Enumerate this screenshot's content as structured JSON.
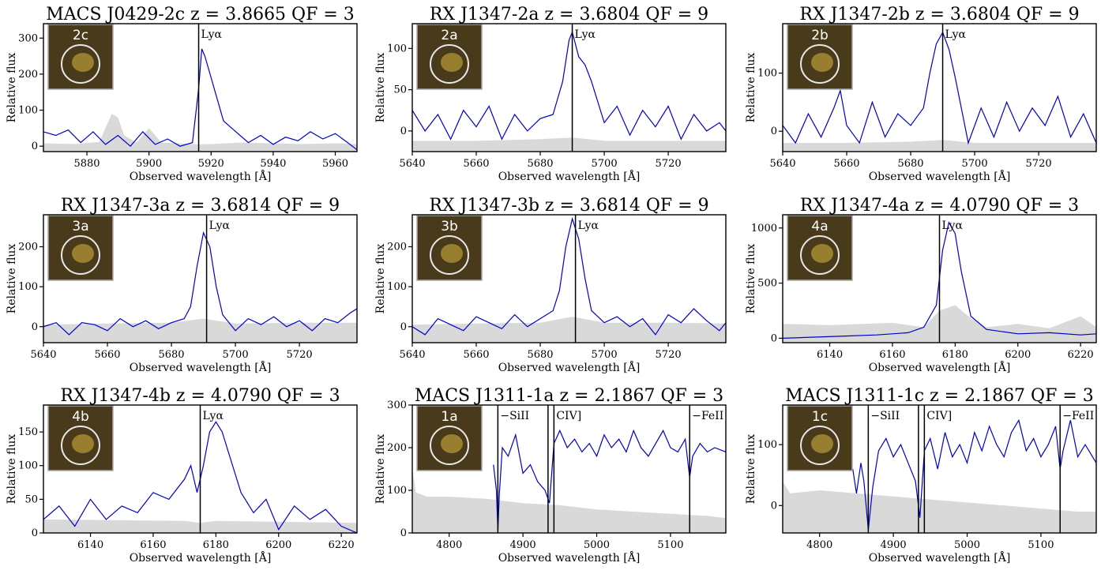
{
  "chart_data": [
    {
      "type": "line",
      "title": "MACS J0429-2c  z = 3.8665 QF = 3",
      "xlabel": "Observed wavelength  [Å]",
      "ylabel": "Relative flux",
      "xlim": [
        5866,
        5967
      ],
      "ylim": [
        -15,
        340
      ],
      "xticks": [
        5880,
        5900,
        5920,
        5940,
        5960
      ],
      "yticks": [
        0,
        100,
        200,
        300
      ],
      "stamp_label": "2c",
      "lines": [
        {
          "x": 5916,
          "label": "Lyα"
        }
      ],
      "series": [
        {
          "style": "flux",
          "x": [
            5866,
            5870,
            5874,
            5878,
            5882,
            5886,
            5890,
            5894,
            5898,
            5902,
            5906,
            5910,
            5914,
            5916,
            5917,
            5918,
            5920,
            5922,
            5924,
            5928,
            5932,
            5936,
            5940,
            5944,
            5948,
            5952,
            5956,
            5960,
            5964,
            5967
          ],
          "y": [
            40,
            30,
            45,
            10,
            40,
            5,
            30,
            0,
            40,
            5,
            20,
            0,
            10,
            160,
            270,
            250,
            190,
            130,
            70,
            40,
            10,
            30,
            5,
            25,
            15,
            40,
            20,
            35,
            10,
            -10
          ]
        },
        {
          "style": "error",
          "x": [
            5866,
            5876,
            5884,
            5888,
            5890,
            5892,
            5896,
            5900,
            5904,
            5910,
            5916,
            5920,
            5930,
            5940,
            5950,
            5960,
            5967
          ],
          "y": [
            8,
            6,
            12,
            90,
            80,
            30,
            10,
            50,
            10,
            8,
            5,
            6,
            10,
            8,
            6,
            8,
            6
          ]
        }
      ]
    },
    {
      "type": "line",
      "title": "RX J1347-2a  z = 3.6804    QF = 9",
      "xlabel": "Observed wavelength  [Å]",
      "ylabel": "Relative flux",
      "xlim": [
        5640,
        5738
      ],
      "ylim": [
        -25,
        130
      ],
      "xticks": [
        5640,
        5660,
        5680,
        5700,
        5720
      ],
      "yticks": [
        0,
        50,
        100
      ],
      "stamp_label": "2a",
      "lines": [
        {
          "x": 5690,
          "label": "Lyα"
        }
      ],
      "series": [
        {
          "style": "flux",
          "x": [
            5640,
            5644,
            5648,
            5652,
            5656,
            5660,
            5664,
            5668,
            5672,
            5676,
            5680,
            5684,
            5687,
            5689,
            5690,
            5692,
            5694,
            5696,
            5700,
            5704,
            5708,
            5712,
            5716,
            5720,
            5724,
            5728,
            5732,
            5736,
            5738
          ],
          "y": [
            25,
            0,
            20,
            -10,
            25,
            5,
            30,
            -10,
            20,
            0,
            15,
            20,
            60,
            110,
            120,
            90,
            80,
            60,
            10,
            30,
            -5,
            25,
            5,
            30,
            -10,
            20,
            0,
            10,
            0
          ]
        },
        {
          "style": "error",
          "x": [
            5640,
            5660,
            5680,
            5690,
            5700,
            5720,
            5738
          ],
          "y": [
            -12,
            -12,
            -10,
            -8,
            -12,
            -12,
            -12
          ]
        }
      ]
    },
    {
      "type": "line",
      "title": "RX J1347-2b  z = 3.6804    QF = 9",
      "xlabel": "Observed wavelength  [Å]",
      "ylabel": "Relative flux",
      "xlim": [
        5640,
        5738
      ],
      "ylim": [
        -35,
        185
      ],
      "xticks": [
        5640,
        5660,
        5680,
        5700,
        5720
      ],
      "yticks": [
        0,
        100
      ],
      "stamp_label": "2b",
      "lines": [
        {
          "x": 5690,
          "label": "Lyα"
        }
      ],
      "series": [
        {
          "style": "flux",
          "x": [
            5640,
            5644,
            5648,
            5652,
            5656,
            5658,
            5660,
            5664,
            5668,
            5672,
            5676,
            5680,
            5684,
            5686,
            5688,
            5690,
            5692,
            5694,
            5698,
            5702,
            5706,
            5710,
            5714,
            5718,
            5722,
            5726,
            5730,
            5734,
            5738
          ],
          "y": [
            10,
            -20,
            30,
            -10,
            40,
            70,
            10,
            -20,
            50,
            -10,
            30,
            10,
            40,
            100,
            150,
            170,
            140,
            90,
            -20,
            40,
            -10,
            50,
            0,
            40,
            10,
            60,
            -10,
            30,
            -20
          ]
        },
        {
          "style": "error",
          "x": [
            5640,
            5660,
            5680,
            5690,
            5700,
            5720,
            5738
          ],
          "y": [
            -20,
            -20,
            -18,
            -15,
            -20,
            -20,
            -20
          ]
        }
      ]
    },
    {
      "type": "line",
      "title": "RX J1347-3a  z = 3.6814    QF = 9",
      "xlabel": "Observed wavelength  [Å]",
      "ylabel": "Relative flux",
      "xlim": [
        5640,
        5738
      ],
      "ylim": [
        -40,
        280
      ],
      "xticks": [
        5640,
        5660,
        5680,
        5700,
        5720
      ],
      "yticks": [
        0,
        100,
        200
      ],
      "stamp_label": "3a",
      "lines": [
        {
          "x": 5691,
          "label": "Lyα"
        }
      ],
      "series": [
        {
          "style": "flux",
          "x": [
            5640,
            5644,
            5648,
            5652,
            5656,
            5660,
            5664,
            5668,
            5672,
            5676,
            5680,
            5684,
            5686,
            5688,
            5690,
            5692,
            5694,
            5696,
            5700,
            5704,
            5708,
            5712,
            5716,
            5720,
            5724,
            5728,
            5732,
            5736,
            5738
          ],
          "y": [
            0,
            10,
            -20,
            10,
            5,
            -10,
            20,
            0,
            15,
            -5,
            10,
            20,
            50,
            150,
            235,
            200,
            100,
            30,
            -10,
            20,
            5,
            25,
            0,
            15,
            -10,
            20,
            10,
            35,
            45
          ]
        },
        {
          "style": "error",
          "x": [
            5640,
            5660,
            5680,
            5690,
            5700,
            5720,
            5738
          ],
          "y": [
            5,
            8,
            10,
            20,
            8,
            10,
            10
          ]
        }
      ]
    },
    {
      "type": "line",
      "title": "RX J1347-3b  z = 3.6814    QF = 9",
      "xlabel": "Observed wavelength  [Å]",
      "ylabel": "Relative flux",
      "xlim": [
        5640,
        5738
      ],
      "ylim": [
        -40,
        280
      ],
      "xticks": [
        5640,
        5660,
        5680,
        5700,
        5720
      ],
      "yticks": [
        0,
        100,
        200
      ],
      "stamp_label": "3b",
      "lines": [
        {
          "x": 5691,
          "label": "Lyα"
        }
      ],
      "series": [
        {
          "style": "flux",
          "x": [
            5640,
            5644,
            5648,
            5652,
            5656,
            5660,
            5664,
            5668,
            5672,
            5676,
            5680,
            5684,
            5686,
            5688,
            5690,
            5692,
            5694,
            5696,
            5700,
            5704,
            5708,
            5712,
            5716,
            5720,
            5724,
            5728,
            5732,
            5736,
            5738
          ],
          "y": [
            0,
            -20,
            20,
            5,
            -10,
            25,
            10,
            -5,
            30,
            0,
            20,
            40,
            90,
            200,
            270,
            220,
            120,
            40,
            10,
            25,
            0,
            20,
            -20,
            30,
            10,
            45,
            15,
            -10,
            10
          ]
        },
        {
          "style": "error",
          "x": [
            5640,
            5660,
            5680,
            5690,
            5700,
            5720,
            5738
          ],
          "y": [
            5,
            8,
            10,
            25,
            10,
            10,
            8
          ]
        }
      ]
    },
    {
      "type": "line",
      "title": "RX J1347-4a  z = 4.0790    QF = 3",
      "xlabel": "Observed wavelength  [Å]",
      "ylabel": "Relative flux",
      "xlim": [
        6125,
        6225
      ],
      "ylim": [
        -40,
        1120
      ],
      "xticks": [
        6140,
        6160,
        6180,
        6200,
        6220
      ],
      "yticks": [
        0,
        500,
        1000
      ],
      "stamp_label": "4a",
      "lines": [
        {
          "x": 6175,
          "label": "Lyα"
        }
      ],
      "series": [
        {
          "style": "flux",
          "x": [
            6125,
            6135,
            6145,
            6155,
            6165,
            6170,
            6174,
            6176,
            6178,
            6180,
            6182,
            6185,
            6190,
            6200,
            6210,
            6220,
            6225
          ],
          "y": [
            0,
            10,
            20,
            30,
            50,
            100,
            300,
            800,
            1050,
            950,
            600,
            200,
            80,
            40,
            50,
            30,
            40
          ]
        },
        {
          "style": "error",
          "x": [
            6125,
            6140,
            6160,
            6170,
            6175,
            6180,
            6185,
            6190,
            6200,
            6210,
            6220,
            6225
          ],
          "y": [
            130,
            120,
            140,
            100,
            250,
            300,
            180,
            100,
            130,
            90,
            200,
            100
          ]
        }
      ]
    },
    {
      "type": "line",
      "title": "RX J1347-4b  z = 4.0790    QF = 3",
      "xlabel": "Observed wavelength  [Å]",
      "ylabel": "Relative flux",
      "xlim": [
        6125,
        6225
      ],
      "ylim": [
        0,
        190
      ],
      "xticks": [
        6140,
        6160,
        6180,
        6200,
        6220
      ],
      "yticks": [
        0,
        50,
        100,
        150
      ],
      "stamp_label": "4b",
      "lines": [
        {
          "x": 6175,
          "label": "Lyα"
        }
      ],
      "series": [
        {
          "style": "flux",
          "x": [
            6125,
            6130,
            6135,
            6140,
            6145,
            6150,
            6155,
            6160,
            6165,
            6170,
            6172,
            6174,
            6176,
            6178,
            6180,
            6182,
            6184,
            6188,
            6192,
            6196,
            6200,
            6205,
            6210,
            6215,
            6220,
            6225
          ],
          "y": [
            20,
            40,
            10,
            50,
            20,
            40,
            30,
            60,
            50,
            80,
            100,
            60,
            100,
            150,
            165,
            150,
            120,
            60,
            30,
            50,
            5,
            40,
            20,
            35,
            10,
            0
          ]
        },
        {
          "style": "error",
          "x": [
            6125,
            6170,
            6175,
            6180,
            6225
          ],
          "y": [
            20,
            18,
            15,
            18,
            15
          ]
        }
      ]
    },
    {
      "type": "line",
      "title": "MACS J1311-1a  z = 2.1867 QF = 3",
      "xlabel": "Observed wavelength  [Å]",
      "ylabel": "Relative flux",
      "xlim": [
        4750,
        5175
      ],
      "ylim": [
        0,
        300
      ],
      "xticks": [
        4800,
        4900,
        5000,
        5100
      ],
      "yticks": [
        0,
        100,
        200,
        300
      ],
      "stamp_label": "1a",
      "lines": [
        {
          "x": 4866,
          "label": "−SiII"
        },
        {
          "x": 4934,
          "label": ""
        },
        {
          "x": 4942,
          "label": "CIV]"
        },
        {
          "x": 5126,
          "label": "−FeII"
        }
      ],
      "series": [
        {
          "style": "flux",
          "x": [
            4860,
            4864,
            4866,
            4868,
            4872,
            4880,
            4890,
            4900,
            4910,
            4920,
            4930,
            4936,
            4942,
            4950,
            4960,
            4970,
            4980,
            4990,
            5000,
            5010,
            5020,
            5030,
            5040,
            5050,
            5060,
            5070,
            5080,
            5090,
            5100,
            5110,
            5120,
            5126,
            5130,
            5140,
            5150,
            5160,
            5175
          ],
          "y": [
            160,
            100,
            5,
            90,
            200,
            180,
            230,
            140,
            160,
            120,
            100,
            70,
            210,
            240,
            200,
            220,
            190,
            210,
            180,
            230,
            200,
            220,
            190,
            240,
            200,
            180,
            210,
            240,
            200,
            190,
            220,
            130,
            180,
            210,
            190,
            200,
            190
          ]
        },
        {
          "style": "error",
          "x": [
            4750,
            4755,
            4770,
            4800,
            4850,
            4900,
            4950,
            5000,
            5050,
            5100,
            5150,
            5175
          ],
          "y": [
            150,
            95,
            85,
            85,
            80,
            70,
            65,
            55,
            50,
            45,
            40,
            35
          ]
        }
      ]
    },
    {
      "type": "line",
      "title": "MACS J1311-1c  z = 2.1867 QF = 3",
      "xlabel": "Observed wavelength  [Å]",
      "ylabel": "Relative flux",
      "xlim": [
        4750,
        5175
      ],
      "ylim": [
        -45,
        165
      ],
      "xticks": [
        4800,
        4900,
        5000,
        5100
      ],
      "yticks": [
        0,
        100
      ],
      "stamp_label": "1c",
      "lines": [
        {
          "x": 4866,
          "label": "−SiII"
        },
        {
          "x": 4934,
          "label": ""
        },
        {
          "x": 4942,
          "label": "CIV]"
        },
        {
          "x": 5126,
          "label": "−FeII"
        }
      ],
      "series": [
        {
          "style": "flux",
          "x": [
            4845,
            4850,
            4856,
            4860,
            4866,
            4872,
            4880,
            4890,
            4900,
            4910,
            4920,
            4930,
            4936,
            4942,
            4950,
            4960,
            4970,
            4980,
            4990,
            5000,
            5010,
            5020,
            5030,
            5040,
            5050,
            5060,
            5070,
            5080,
            5090,
            5100,
            5110,
            5120,
            5126,
            5130,
            5140,
            5150,
            5160,
            5175
          ],
          "y": [
            60,
            20,
            70,
            40,
            -40,
            30,
            90,
            110,
            80,
            100,
            70,
            40,
            -20,
            90,
            110,
            60,
            120,
            80,
            100,
            70,
            120,
            90,
            130,
            100,
            80,
            120,
            140,
            90,
            110,
            80,
            100,
            130,
            60,
            90,
            140,
            80,
            100,
            70
          ]
        },
        {
          "style": "error",
          "x": [
            4750,
            4760,
            4800,
            4850,
            4900,
            4950,
            5000,
            5050,
            5100,
            5150,
            5175
          ],
          "y": [
            40,
            20,
            25,
            20,
            15,
            10,
            5,
            0,
            -5,
            -10,
            -10
          ]
        }
      ]
    }
  ]
}
